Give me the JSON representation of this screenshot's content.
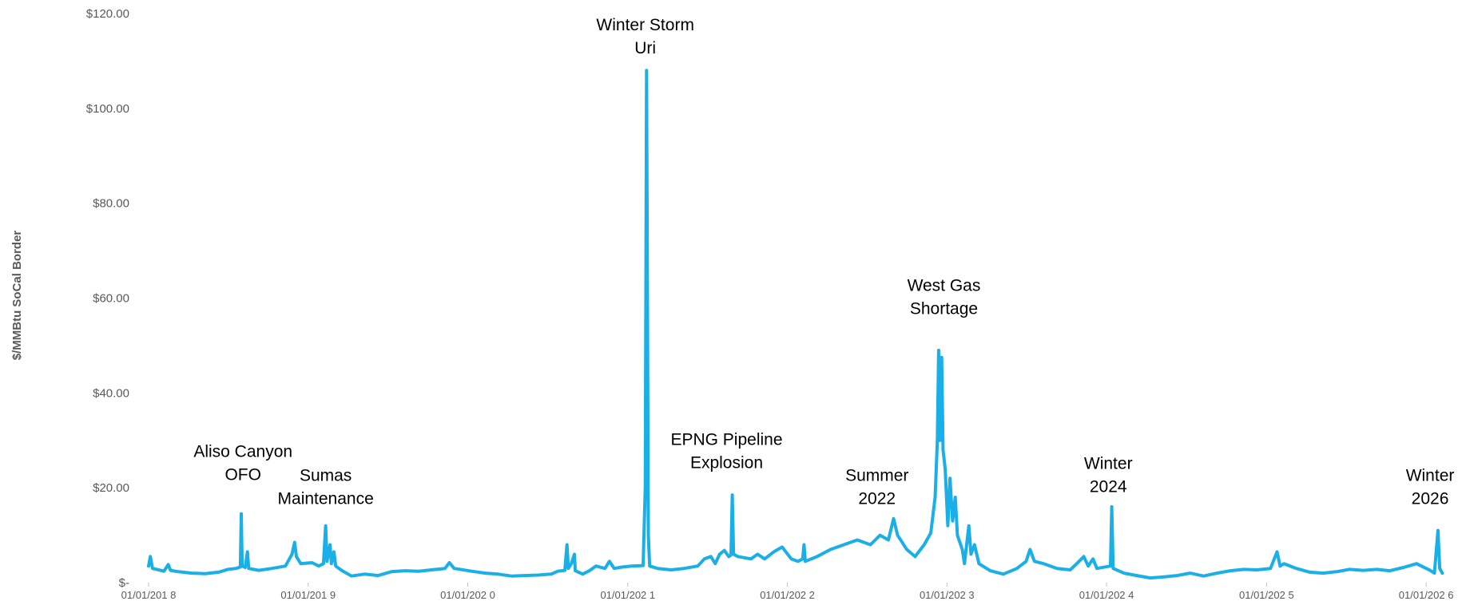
{
  "chart_data": {
    "type": "line",
    "title": "",
    "xlabel": "",
    "ylabel": "$/MMBtu SoCal Border",
    "ylim": [
      0,
      120
    ],
    "xlim": [
      "2018-01-01",
      "2026-02-10"
    ],
    "grid": false,
    "legend": "none",
    "y_ticks": [
      {
        "value": 0,
        "label": "$-"
      },
      {
        "value": 20,
        "label": "$20.00"
      },
      {
        "value": 40,
        "label": "$40.00"
      },
      {
        "value": 60,
        "label": "$60.00"
      },
      {
        "value": 80,
        "label": "$80.00"
      },
      {
        "value": 100,
        "label": "$100.00"
      },
      {
        "value": 120,
        "label": "$120.00"
      }
    ],
    "x_ticks": [
      {
        "date": "2018-01-01",
        "label": "01/01/201 8"
      },
      {
        "date": "2019-01-01",
        "label": "01/01/201 9"
      },
      {
        "date": "2020-01-01",
        "label": "01/01/202 0"
      },
      {
        "date": "2021-01-01",
        "label": "01/01/202 1"
      },
      {
        "date": "2022-01-01",
        "label": "01/01/202 2"
      },
      {
        "date": "2023-01-01",
        "label": "01/01/202 3"
      },
      {
        "date": "2024-01-01",
        "label": "01/01/202 4"
      },
      {
        "date": "2025-01-01",
        "label": "01/01/202 5"
      },
      {
        "date": "2026-01-01",
        "label": "01/01/202 6"
      }
    ],
    "series": [
      {
        "color": "#1AAFE6",
        "points": [
          [
            "2018-01-01",
            3.5
          ],
          [
            "2018-01-05",
            5.5
          ],
          [
            "2018-01-10",
            3.0
          ],
          [
            "2018-01-20",
            2.8
          ],
          [
            "2018-02-05",
            2.4
          ],
          [
            "2018-02-15",
            3.8
          ],
          [
            "2018-02-20",
            2.6
          ],
          [
            "2018-03-10",
            2.3
          ],
          [
            "2018-04-10",
            2.0
          ],
          [
            "2018-05-10",
            1.9
          ],
          [
            "2018-06-10",
            2.2
          ],
          [
            "2018-07-01",
            2.8
          ],
          [
            "2018-07-20",
            3.0
          ],
          [
            "2018-07-30",
            3.3
          ],
          [
            "2018-08-01",
            14.5
          ],
          [
            "2018-08-03",
            3.5
          ],
          [
            "2018-08-10",
            3.2
          ],
          [
            "2018-08-15",
            6.5
          ],
          [
            "2018-08-18",
            3.0
          ],
          [
            "2018-09-10",
            2.6
          ],
          [
            "2018-10-10",
            3.0
          ],
          [
            "2018-11-10",
            3.5
          ],
          [
            "2018-11-25",
            6.0
          ],
          [
            "2018-12-01",
            8.5
          ],
          [
            "2018-12-05",
            5.5
          ],
          [
            "2018-12-15",
            4.0
          ],
          [
            "2019-01-10",
            4.2
          ],
          [
            "2019-01-25",
            3.5
          ],
          [
            "2019-02-05",
            4.0
          ],
          [
            "2019-02-10",
            12.0
          ],
          [
            "2019-02-13",
            4.5
          ],
          [
            "2019-02-20",
            8.0
          ],
          [
            "2019-02-23",
            4.0
          ],
          [
            "2019-03-01",
            6.5
          ],
          [
            "2019-03-05",
            3.5
          ],
          [
            "2019-03-20",
            2.5
          ],
          [
            "2019-04-10",
            1.4
          ],
          [
            "2019-05-10",
            1.8
          ],
          [
            "2019-06-10",
            1.5
          ],
          [
            "2019-07-10",
            2.3
          ],
          [
            "2019-08-10",
            2.5
          ],
          [
            "2019-09-10",
            2.4
          ],
          [
            "2019-10-10",
            2.7
          ],
          [
            "2019-11-10",
            3.0
          ],
          [
            "2019-11-20",
            4.2
          ],
          [
            "2019-12-01",
            3.0
          ],
          [
            "2020-01-10",
            2.4
          ],
          [
            "2020-02-10",
            2.0
          ],
          [
            "2020-03-10",
            1.8
          ],
          [
            "2020-04-10",
            1.4
          ],
          [
            "2020-05-10",
            1.5
          ],
          [
            "2020-06-10",
            1.6
          ],
          [
            "2020-07-10",
            1.8
          ],
          [
            "2020-07-25",
            2.4
          ],
          [
            "2020-08-10",
            2.6
          ],
          [
            "2020-08-15",
            8.0
          ],
          [
            "2020-08-18",
            3.0
          ],
          [
            "2020-08-25",
            4.0
          ],
          [
            "2020-09-01",
            6.0
          ],
          [
            "2020-09-03",
            2.5
          ],
          [
            "2020-09-20",
            1.8
          ],
          [
            "2020-10-05",
            2.5
          ],
          [
            "2020-10-20",
            3.5
          ],
          [
            "2020-11-10",
            3.0
          ],
          [
            "2020-11-20",
            4.5
          ],
          [
            "2020-12-01",
            3.0
          ],
          [
            "2020-12-20",
            3.3
          ],
          [
            "2021-01-10",
            3.5
          ],
          [
            "2021-02-05",
            3.6
          ],
          [
            "2021-02-10",
            20.0
          ],
          [
            "2021-02-13",
            108.0
          ],
          [
            "2021-02-15",
            60.0
          ],
          [
            "2021-02-17",
            10.0
          ],
          [
            "2021-02-20",
            3.5
          ],
          [
            "2021-03-10",
            3.0
          ],
          [
            "2021-04-10",
            2.7
          ],
          [
            "2021-05-10",
            3.0
          ],
          [
            "2021-06-10",
            3.5
          ],
          [
            "2021-06-25",
            5.0
          ],
          [
            "2021-07-10",
            5.5
          ],
          [
            "2021-07-20",
            4.0
          ],
          [
            "2021-07-30",
            6.0
          ],
          [
            "2021-08-10",
            6.8
          ],
          [
            "2021-08-20",
            5.5
          ],
          [
            "2021-08-25",
            5.8
          ],
          [
            "2021-08-28",
            18.5
          ],
          [
            "2021-08-31",
            6.0
          ],
          [
            "2021-09-10",
            5.5
          ],
          [
            "2021-10-10",
            5.0
          ],
          [
            "2021-10-25",
            6.0
          ],
          [
            "2021-11-10",
            5.0
          ],
          [
            "2021-12-01",
            6.5
          ],
          [
            "2021-12-20",
            7.5
          ],
          [
            "2022-01-10",
            5.0
          ],
          [
            "2022-01-25",
            4.5
          ],
          [
            "2022-02-05",
            5.0
          ],
          [
            "2022-02-08",
            8.0
          ],
          [
            "2022-02-11",
            4.5
          ],
          [
            "2022-03-10",
            5.5
          ],
          [
            "2022-04-10",
            7.0
          ],
          [
            "2022-05-10",
            8.0
          ],
          [
            "2022-06-10",
            9.0
          ],
          [
            "2022-07-10",
            8.0
          ],
          [
            "2022-08-01",
            10.0
          ],
          [
            "2022-08-20",
            9.0
          ],
          [
            "2022-09-01",
            13.5
          ],
          [
            "2022-09-10",
            10.0
          ],
          [
            "2022-10-01",
            7.0
          ],
          [
            "2022-10-20",
            5.5
          ],
          [
            "2022-11-10",
            8.0
          ],
          [
            "2022-11-25",
            10.5
          ],
          [
            "2022-12-05",
            18.0
          ],
          [
            "2022-12-10",
            30.0
          ],
          [
            "2022-12-13",
            49.0
          ],
          [
            "2022-12-16",
            30.0
          ],
          [
            "2022-12-20",
            47.5
          ],
          [
            "2022-12-23",
            28.0
          ],
          [
            "2022-12-28",
            24.0
          ],
          [
            "2023-01-03",
            12.0
          ],
          [
            "2023-01-08",
            22.0
          ],
          [
            "2023-01-14",
            13.0
          ],
          [
            "2023-01-20",
            18.0
          ],
          [
            "2023-01-25",
            10.0
          ],
          [
            "2023-02-05",
            7.0
          ],
          [
            "2023-02-10",
            4.0
          ],
          [
            "2023-02-20",
            12.0
          ],
          [
            "2023-02-25",
            6.0
          ],
          [
            "2023-03-05",
            8.0
          ],
          [
            "2023-03-15",
            4.0
          ],
          [
            "2023-04-10",
            2.5
          ],
          [
            "2023-05-10",
            1.8
          ],
          [
            "2023-06-10",
            3.0
          ],
          [
            "2023-07-01",
            4.5
          ],
          [
            "2023-07-10",
            7.0
          ],
          [
            "2023-07-20",
            4.5
          ],
          [
            "2023-08-10",
            4.0
          ],
          [
            "2023-09-10",
            3.0
          ],
          [
            "2023-10-10",
            2.7
          ],
          [
            "2023-10-25",
            4.0
          ],
          [
            "2023-11-10",
            5.5
          ],
          [
            "2023-11-20",
            3.5
          ],
          [
            "2023-12-01",
            5.0
          ],
          [
            "2023-12-10",
            3.0
          ],
          [
            "2024-01-10",
            3.5
          ],
          [
            "2024-01-13",
            16.0
          ],
          [
            "2024-01-16",
            3.0
          ],
          [
            "2024-02-10",
            2.0
          ],
          [
            "2024-03-10",
            1.5
          ],
          [
            "2024-04-10",
            1.0
          ],
          [
            "2024-05-10",
            1.2
          ],
          [
            "2024-06-10",
            1.5
          ],
          [
            "2024-07-10",
            2.0
          ],
          [
            "2024-08-10",
            1.4
          ],
          [
            "2024-09-10",
            2.0
          ],
          [
            "2024-10-10",
            2.5
          ],
          [
            "2024-11-10",
            2.8
          ],
          [
            "2024-12-10",
            2.7
          ],
          [
            "2025-01-10",
            3.0
          ],
          [
            "2025-01-25",
            6.5
          ],
          [
            "2025-02-01",
            3.5
          ],
          [
            "2025-02-10",
            4.0
          ],
          [
            "2025-03-10",
            3.0
          ],
          [
            "2025-04-10",
            2.2
          ],
          [
            "2025-05-10",
            2.0
          ],
          [
            "2025-06-10",
            2.3
          ],
          [
            "2025-07-10",
            2.8
          ],
          [
            "2025-08-10",
            2.6
          ],
          [
            "2025-09-10",
            2.8
          ],
          [
            "2025-10-10",
            2.5
          ],
          [
            "2025-11-10",
            3.2
          ],
          [
            "2025-12-10",
            4.0
          ],
          [
            "2026-01-10",
            2.6
          ],
          [
            "2026-01-20",
            2.0
          ],
          [
            "2026-01-28",
            11.0
          ],
          [
            "2026-02-01",
            3.0
          ],
          [
            "2026-02-07",
            2.0
          ]
        ]
      }
    ],
    "annotations": [
      {
        "lines": [
          "Aliso Canyon",
          "OFO"
        ],
        "date": "2018-08-05",
        "y": 26.5
      },
      {
        "lines": [
          "Sumas",
          "Maintenance"
        ],
        "date": "2019-02-10",
        "y": 21.5
      },
      {
        "lines": [
          "Winter Storm",
          "Uri"
        ],
        "date": "2021-02-10",
        "y": 116.5
      },
      {
        "lines": [
          "EPNG Pipeline",
          "Explosion"
        ],
        "date": "2021-08-15",
        "y": 29.0
      },
      {
        "lines": [
          "Summer",
          "2022"
        ],
        "date": "2022-07-25",
        "y": 21.5
      },
      {
        "lines": [
          "West Gas",
          "Shortage"
        ],
        "date": "2022-12-25",
        "y": 61.5
      },
      {
        "lines": [
          "Winter",
          "2024"
        ],
        "date": "2024-01-05",
        "y": 24.0
      },
      {
        "lines": [
          "Winter",
          "2026"
        ],
        "date": "2026-01-10",
        "y": 21.5
      }
    ]
  }
}
